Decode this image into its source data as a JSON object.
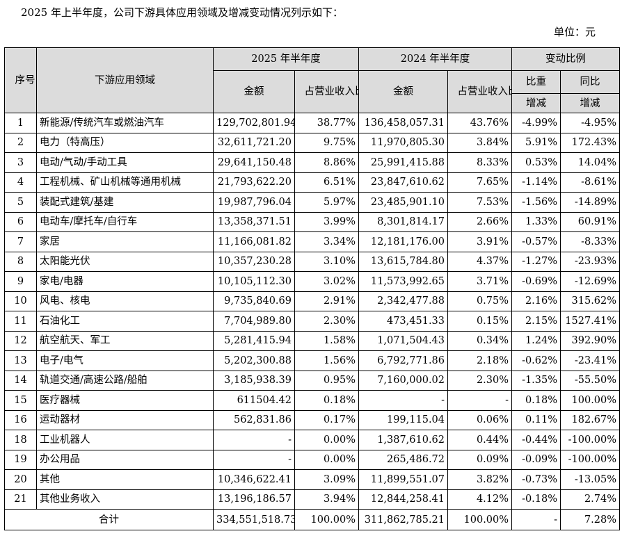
{
  "intro": "2025 年上半年度，公司下游具体应用领域及增减变动情况列示如下：",
  "unit": "单位：元",
  "headers": {
    "seq": "序号",
    "field": "下游应用领域",
    "y2025": "2025 年半年度",
    "y2024": "2024 年半年度",
    "change": "变动比例",
    "amount": "金额",
    "ratio": "占营业收入比重",
    "share": "比重",
    "yoy": "同比",
    "incdec": "增减"
  },
  "rows": [
    {
      "no": "1",
      "field": "新能源/传统汽车或燃油汽车",
      "amt25": "129,702,801.94",
      "pct25": "38.77%",
      "amt24": "136,458,057.31",
      "pct24": "43.76%",
      "share": "-4.99%",
      "yoy": "-4.95%"
    },
    {
      "no": "2",
      "field": "电力（特高压）",
      "amt25": "32,611,721.20",
      "pct25": "9.75%",
      "amt24": "11,970,805.30",
      "pct24": "3.84%",
      "share": "5.91%",
      "yoy": "172.43%"
    },
    {
      "no": "3",
      "field": "电动/气动/手动工具",
      "amt25": "29,641,150.48",
      "pct25": "8.86%",
      "amt24": "25,991,415.88",
      "pct24": "8.33%",
      "share": "0.53%",
      "yoy": "14.04%"
    },
    {
      "no": "4",
      "field": "工程机械、矿山机械等通用机械",
      "amt25": "21,793,622.20",
      "pct25": "6.51%",
      "amt24": "23,847,610.62",
      "pct24": "7.65%",
      "share": "-1.14%",
      "yoy": "-8.61%"
    },
    {
      "no": "5",
      "field": "装配式建筑/基建",
      "amt25": "19,987,796.04",
      "pct25": "5.97%",
      "amt24": "23,485,901.10",
      "pct24": "7.53%",
      "share": "-1.56%",
      "yoy": "-14.89%"
    },
    {
      "no": "6",
      "field": "电动车/摩托车/自行车",
      "amt25": "13,358,371.51",
      "pct25": "3.99%",
      "amt24": "8,301,814.17",
      "pct24": "2.66%",
      "share": "1.33%",
      "yoy": "60.91%"
    },
    {
      "no": "7",
      "field": "家居",
      "amt25": "11,166,081.82",
      "pct25": "3.34%",
      "amt24": "12,181,176.00",
      "pct24": "3.91%",
      "share": "-0.57%",
      "yoy": "-8.33%"
    },
    {
      "no": "8",
      "field": "太阳能光伏",
      "amt25": "10,357,230.28",
      "pct25": "3.10%",
      "amt24": "13,615,784.80",
      "pct24": "4.37%",
      "share": "-1.27%",
      "yoy": "-23.93%"
    },
    {
      "no": "9",
      "field": "家电/电器",
      "amt25": "10,105,112.30",
      "pct25": "3.02%",
      "amt24": "11,573,992.65",
      "pct24": "3.71%",
      "share": "-0.69%",
      "yoy": "-12.69%"
    },
    {
      "no": "10",
      "field": "风电、核电",
      "amt25": "9,735,840.69",
      "pct25": "2.91%",
      "amt24": "2,342,477.88",
      "pct24": "0.75%",
      "share": "2.16%",
      "yoy": "315.62%"
    },
    {
      "no": "11",
      "field": "石油化工",
      "amt25": "7,704,989.80",
      "pct25": "2.30%",
      "amt24": "473,451.33",
      "pct24": "0.15%",
      "share": "2.15%",
      "yoy": "1527.41%"
    },
    {
      "no": "12",
      "field": "航空航天、军工",
      "amt25": "5,281,415.94",
      "pct25": "1.58%",
      "amt24": "1,071,504.43",
      "pct24": "0.34%",
      "share": "1.24%",
      "yoy": "392.90%"
    },
    {
      "no": "13",
      "field": "电子/电气",
      "amt25": "5,202,300.88",
      "pct25": "1.56%",
      "amt24": "6,792,771.86",
      "pct24": "2.18%",
      "share": "-0.62%",
      "yoy": "-23.41%"
    },
    {
      "no": "14",
      "field": "轨道交通/高速公路/船舶",
      "amt25": "3,185,938.39",
      "pct25": "0.95%",
      "amt24": "7,160,000.02",
      "pct24": "2.30%",
      "share": "-1.35%",
      "yoy": "-55.50%"
    },
    {
      "no": "15",
      "field": "医疗器械",
      "amt25": "611504.42",
      "pct25": "0.18%",
      "amt24": "-",
      "pct24": "-",
      "share": "0.18%",
      "yoy": "100.00%"
    },
    {
      "no": "16",
      "field": "运动器材",
      "amt25": "562,831.86",
      "pct25": "0.17%",
      "amt24": "199,115.04",
      "pct24": "0.06%",
      "share": "0.11%",
      "yoy": "182.67%"
    },
    {
      "no": "18",
      "field": "工业机器人",
      "amt25": "-",
      "pct25": "0.00%",
      "amt24": "1,387,610.62",
      "pct24": "0.44%",
      "share": "-0.44%",
      "yoy": "-100.00%"
    },
    {
      "no": "19",
      "field": "办公用品",
      "amt25": "-",
      "pct25": "0.00%",
      "amt24": "265,486.72",
      "pct24": "0.09%",
      "share": "-0.09%",
      "yoy": "-100.00%"
    },
    {
      "no": "20",
      "field": "其他",
      "amt25": "10,346,622.41",
      "pct25": "3.09%",
      "amt24": "11,899,551.07",
      "pct24": "3.82%",
      "share": "-0.73%",
      "yoy": "-13.05%"
    },
    {
      "no": "21",
      "field": "其他业务收入",
      "amt25": "13,196,186.57",
      "pct25": "3.94%",
      "amt24": "12,844,258.41",
      "pct24": "4.12%",
      "share": "-0.18%",
      "yoy": "2.74%"
    }
  ],
  "total": {
    "label": "合计",
    "amt25": "334,551,518.73",
    "pct25": "100.00%",
    "amt24": "311,862,785.21",
    "pct24": "100.00%",
    "share": "-",
    "yoy": "7.28%"
  }
}
